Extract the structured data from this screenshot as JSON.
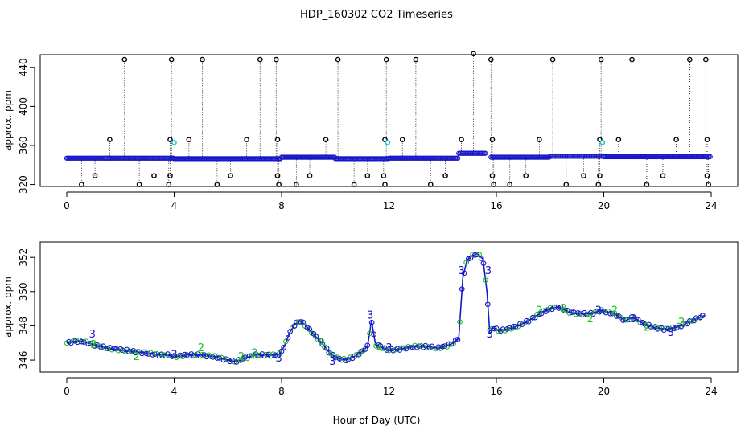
{
  "title": "HDP_160302  CO2 Timeseries",
  "xlabel": "Hour of Day (UTC)",
  "colors": {
    "main": "#1818c8",
    "alt": "#00c8c8",
    "green": "#20c020",
    "black": "#000000"
  },
  "chart_data": [
    {
      "type": "scatter",
      "panel": "top",
      "ylabel": "approx. ppm",
      "xlim": [
        0,
        24
      ],
      "ylim": [
        318,
        453
      ],
      "x_ticks": [
        0,
        4,
        8,
        12,
        16,
        20,
        24
      ],
      "y_ticks": [
        320,
        360,
        400,
        440
      ],
      "baseline_segments": [
        {
          "x0": 0.0,
          "x1": 1.5,
          "y": 347.0
        },
        {
          "x0": 1.5,
          "x1": 4.0,
          "y": 347.0
        },
        {
          "x0": 4.0,
          "x1": 8.0,
          "y": 346.5
        },
        {
          "x0": 8.0,
          "x1": 10.0,
          "y": 348.0
        },
        {
          "x0": 10.0,
          "x1": 12.0,
          "y": 346.5
        },
        {
          "x0": 12.0,
          "x1": 14.6,
          "y": 347.0
        },
        {
          "x0": 14.6,
          "x1": 15.6,
          "y": 352.0
        },
        {
          "x0": 15.8,
          "x1": 18.0,
          "y": 348.0
        },
        {
          "x0": 18.0,
          "x1": 20.0,
          "y": 349.0
        },
        {
          "x0": 20.0,
          "x1": 24.0,
          "y": 348.5
        }
      ],
      "outliers_high": [
        2.15,
        3.9,
        5.05,
        7.2,
        7.8,
        10.1,
        11.9,
        13.0,
        15.15,
        15.8,
        18.1,
        19.9,
        21.05,
        23.2,
        23.8
      ],
      "outliers_high_y": [
        448,
        448,
        448,
        448,
        448,
        448,
        448,
        448,
        454,
        448,
        448,
        448,
        448,
        448,
        448
      ],
      "outliers_mid": [
        1.6,
        3.85,
        4.55,
        6.7,
        7.85,
        9.65,
        11.85,
        12.5,
        14.7,
        15.85,
        17.6,
        19.85,
        20.55,
        22.7,
        23.85
      ],
      "outliers_mid_y": [
        366,
        366,
        366,
        366,
        366,
        366,
        366,
        366,
        366,
        366,
        366,
        366,
        366,
        366,
        366
      ],
      "outliers_low": [
        0.55,
        1.05,
        2.7,
        3.25,
        3.8,
        3.85,
        5.6,
        6.1,
        7.85,
        7.9,
        8.55,
        9.05,
        10.7,
        11.2,
        11.8,
        11.85,
        13.55,
        14.1,
        15.85,
        15.9,
        16.5,
        17.1,
        18.6,
        19.25,
        19.8,
        19.85,
        21.6,
        22.2,
        23.85,
        23.9
      ],
      "outliers_low_y": [
        320,
        329,
        320,
        329,
        320,
        329,
        320,
        329,
        329,
        320,
        320,
        329,
        320,
        329,
        329,
        320,
        320,
        329,
        329,
        320,
        320,
        329,
        320,
        329,
        320,
        329,
        320,
        329,
        329,
        320
      ],
      "cyan_points": [
        4.0,
        11.95,
        19.95
      ],
      "cyan_points_y": [
        363,
        363,
        363
      ]
    },
    {
      "type": "line",
      "panel": "bottom",
      "ylabel": "approx. ppm",
      "xlim": [
        0,
        24
      ],
      "ylim": [
        345.3,
        352.9
      ],
      "x_ticks": [
        0,
        4,
        8,
        12,
        16,
        20,
        24
      ],
      "y_ticks": [
        346,
        348,
        350,
        352
      ],
      "x": [
        0.0,
        0.3,
        0.6,
        1.0,
        1.5,
        2.0,
        2.5,
        3.0,
        3.5,
        3.8,
        4.0,
        4.5,
        5.0,
        5.5,
        6.0,
        6.3,
        6.6,
        7.0,
        7.5,
        7.9,
        8.1,
        8.3,
        8.5,
        8.7,
        8.9,
        9.2,
        9.5,
        9.8,
        10.1,
        10.4,
        10.7,
        11.0,
        11.2,
        11.35,
        11.5,
        11.7,
        11.9,
        12.2,
        12.6,
        13.0,
        13.4,
        13.8,
        14.1,
        14.4,
        14.6,
        14.75,
        14.9,
        15.1,
        15.3,
        15.5,
        15.65,
        15.75,
        15.9,
        16.1,
        16.4,
        16.8,
        17.2,
        17.6,
        18.0,
        18.3,
        18.7,
        19.1,
        19.5,
        19.9,
        20.1,
        20.4,
        20.8,
        21.1,
        21.5,
        21.9,
        22.3,
        22.7,
        23.0,
        23.3,
        23.6,
        23.75
      ],
      "y": [
        347.0,
        347.1,
        347.1,
        346.9,
        346.7,
        346.6,
        346.5,
        346.4,
        346.3,
        346.3,
        346.2,
        346.3,
        346.3,
        346.2,
        346.0,
        345.9,
        346.1,
        346.3,
        346.3,
        346.3,
        346.8,
        347.6,
        348.1,
        348.3,
        348.0,
        347.5,
        347.0,
        346.4,
        346.1,
        346.0,
        346.2,
        346.5,
        346.8,
        348.3,
        346.9,
        346.8,
        346.6,
        346.6,
        346.7,
        346.8,
        346.8,
        346.7,
        346.8,
        347.0,
        347.3,
        350.8,
        351.8,
        352.1,
        352.2,
        351.9,
        350.0,
        347.7,
        347.9,
        347.7,
        347.8,
        348.0,
        348.3,
        348.7,
        349.0,
        349.1,
        348.8,
        348.7,
        348.7,
        348.9,
        348.8,
        348.7,
        348.3,
        348.5,
        348.1,
        347.9,
        347.8,
        347.9,
        348.1,
        348.3,
        348.5,
        348.6
      ],
      "labels_green": [
        {
          "x": 1.0,
          "y": 346.9,
          "text": "2"
        },
        {
          "x": 2.6,
          "y": 346.2,
          "text": "2"
        },
        {
          "x": 5.0,
          "y": 346.7,
          "text": "2"
        },
        {
          "x": 6.5,
          "y": 346.2,
          "text": "2"
        },
        {
          "x": 7.0,
          "y": 346.4,
          "text": "2"
        },
        {
          "x": 9.5,
          "y": 347.0,
          "text": "2"
        },
        {
          "x": 11.65,
          "y": 346.8,
          "text": "2"
        },
        {
          "x": 17.6,
          "y": 348.9,
          "text": "2"
        },
        {
          "x": 18.5,
          "y": 349.0,
          "text": "2"
        },
        {
          "x": 19.5,
          "y": 348.4,
          "text": "2"
        },
        {
          "x": 20.4,
          "y": 348.9,
          "text": "2"
        },
        {
          "x": 21.6,
          "y": 347.9,
          "text": "2"
        },
        {
          "x": 22.9,
          "y": 348.2,
          "text": "2"
        }
      ],
      "labels_blue": [
        {
          "x": 0.95,
          "y": 347.5,
          "text": "3"
        },
        {
          "x": 4.0,
          "y": 346.3,
          "text": "3"
        },
        {
          "x": 7.9,
          "y": 346.1,
          "text": "3"
        },
        {
          "x": 9.9,
          "y": 345.9,
          "text": "3"
        },
        {
          "x": 11.3,
          "y": 348.6,
          "text": "3"
        },
        {
          "x": 12.0,
          "y": 346.7,
          "text": "3"
        },
        {
          "x": 14.7,
          "y": 351.2,
          "text": "3"
        },
        {
          "x": 15.7,
          "y": 351.2,
          "text": "3"
        },
        {
          "x": 15.75,
          "y": 347.5,
          "text": "3"
        },
        {
          "x": 19.8,
          "y": 348.9,
          "text": "3"
        },
        {
          "x": 21.1,
          "y": 348.4,
          "text": "3"
        },
        {
          "x": 22.5,
          "y": 347.6,
          "text": "3"
        }
      ]
    }
  ]
}
